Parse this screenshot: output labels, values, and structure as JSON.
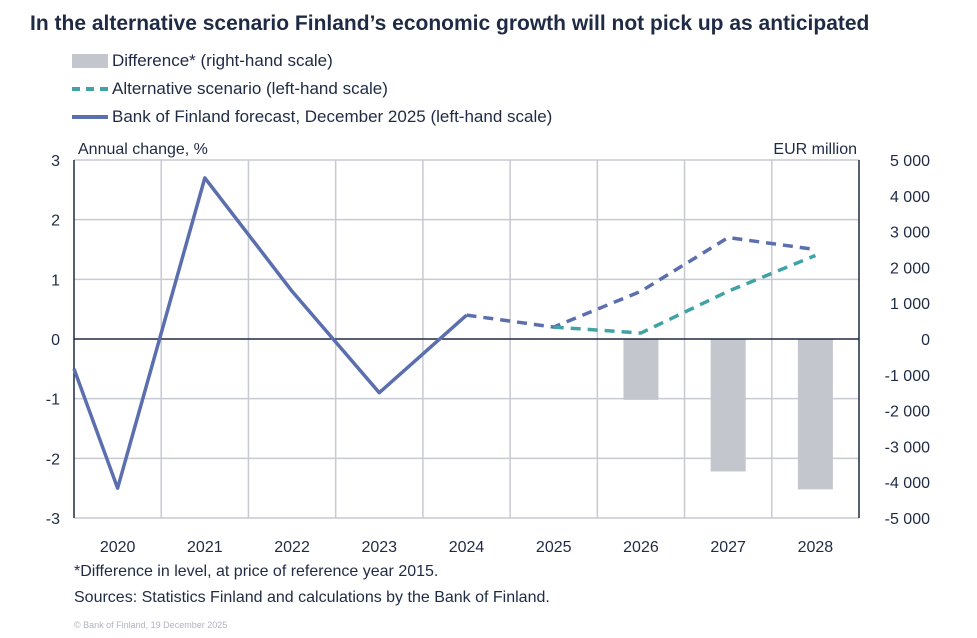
{
  "chart_data": {
    "type": "line",
    "title": "In the alternative scenario Finland’s economic growth will not pick up as anticipated",
    "left_axis_label": "Annual change, %",
    "right_axis_label": "EUR million",
    "categories": [
      "2020",
      "2021",
      "2022",
      "2023",
      "2024",
      "2025",
      "2026",
      "2027",
      "2028"
    ],
    "ylim_left": [
      -3,
      3
    ],
    "yticks_left": [
      "3",
      "2",
      "1",
      "0",
      "-1",
      "-2",
      "-3"
    ],
    "ylim_right": [
      -5000,
      5000
    ],
    "yticks_right": [
      "5 000",
      "4 000",
      "3 000",
      "2 000",
      "1 000",
      "0",
      "-1 000",
      "-2 000",
      "-3 000",
      "-4 000",
      "-5 000"
    ],
    "grid": true,
    "legend_placement": "top-left",
    "series": [
      {
        "name": "Difference* (right-hand scale)",
        "type": "bar",
        "axis": "right",
        "color": "#c3c6cd",
        "values": [
          null,
          null,
          null,
          null,
          null,
          null,
          -1700,
          -3700,
          -4200
        ]
      },
      {
        "name": "Alternative scenario (left-hand scale)",
        "type": "line",
        "style": "dashed",
        "axis": "left",
        "color": "#41a2a8",
        "values": [
          null,
          null,
          null,
          null,
          null,
          0.2,
          0.1,
          0.8,
          1.4
        ]
      },
      {
        "name": "Bank of Finland forecast, December 2025 (left-hand scale)",
        "type": "line",
        "axis": "left",
        "color": "#5b6fae",
        "values": [
          -2.5,
          2.7,
          0.8,
          -0.9,
          0.4,
          0.2,
          0.8,
          1.7,
          1.5
        ],
        "left_edge_value": -0.5,
        "forecast_from": "2024"
      }
    ],
    "footnote": "*Difference  in level, at price of reference  year 2015.",
    "sources": "Sources: Statistics Finland and calculations by the Bank of Finland.",
    "copyright": "© Bank of Finland, 19 December 2025"
  }
}
